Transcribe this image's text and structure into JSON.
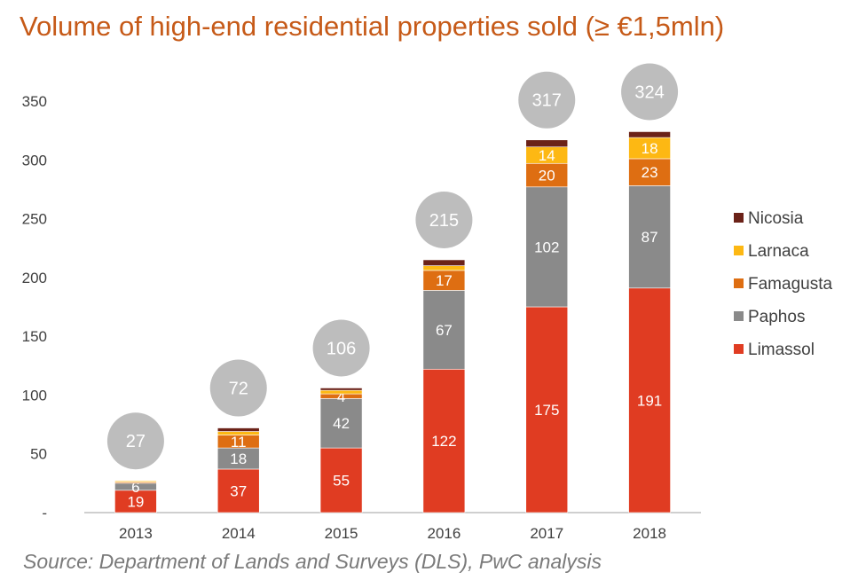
{
  "title": "Volume of high-end residential properties sold (≥ €1,5mln)",
  "source": "Source: Department of Lands and Surveys (DLS), PwC analysis",
  "chart_data": {
    "type": "bar",
    "stacked": true,
    "categories": [
      "2013",
      "2014",
      "2015",
      "2016",
      "2017",
      "2018"
    ],
    "ylim": [
      0,
      350
    ],
    "yticks": [
      "-",
      "50",
      "100",
      "150",
      "200",
      "250",
      "300",
      "350"
    ],
    "yticks_values": [
      0,
      50,
      100,
      150,
      200,
      250,
      300,
      350
    ],
    "legend_position": "right",
    "grid": false,
    "series": [
      {
        "name": "Limassol",
        "color": "#e03c22",
        "values": [
          19,
          37,
          55,
          122,
          175,
          191
        ],
        "labels": [
          "19",
          "37",
          "55",
          "122",
          "175",
          "191"
        ]
      },
      {
        "name": "Paphos",
        "color": "#8a8a8a",
        "values": [
          6,
          18,
          42,
          67,
          102,
          87
        ],
        "labels": [
          "6",
          "18",
          "42",
          "67",
          "102",
          "87"
        ]
      },
      {
        "name": "Famagusta",
        "color": "#de6e12",
        "values": [
          1,
          11,
          4,
          17,
          20,
          23
        ],
        "labels": [
          "",
          "11",
          "4",
          "17",
          "20",
          "23"
        ]
      },
      {
        "name": "Larnaca",
        "color": "#fdb813",
        "values": [
          1,
          3,
          3,
          4,
          14,
          18
        ],
        "labels": [
          "",
          "",
          "",
          "",
          "14",
          "18"
        ]
      },
      {
        "name": "Nicosia",
        "color": "#6b2218",
        "values": [
          0,
          3,
          2,
          5,
          6,
          5
        ],
        "labels": [
          "",
          "",
          "",
          "",
          "",
          ""
        ]
      }
    ],
    "totals": [
      "27",
      "72",
      "106",
      "215",
      "317",
      "324"
    ],
    "legend_order": [
      "Nicosia",
      "Larnaca",
      "Famagusta",
      "Paphos",
      "Limassol"
    ]
  }
}
